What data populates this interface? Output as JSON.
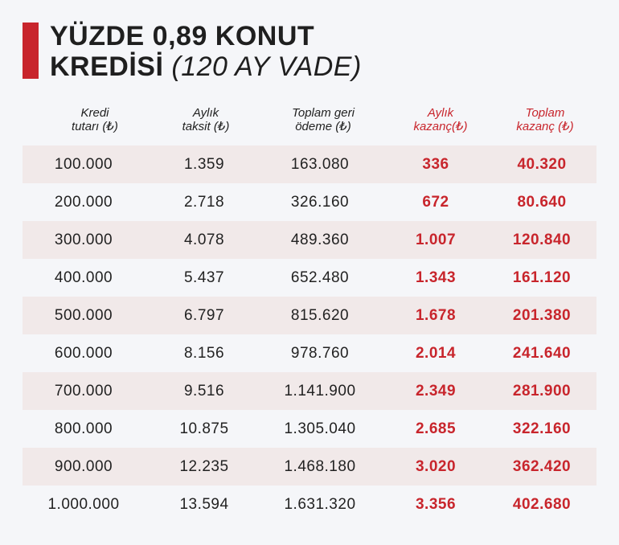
{
  "title": {
    "line1": "YÜZDE 0,89 KONUT",
    "line2_main": "KREDİSİ",
    "line2_sub": "(120 AY VADE)"
  },
  "colors": {
    "accent": "#c8252c",
    "row_shade": "#f1e9e9",
    "background": "#f5f6f9"
  },
  "table": {
    "headers": [
      {
        "line1": "Kredi",
        "line2": "tutarı (₺)"
      },
      {
        "line1": "Aylık",
        "line2": "taksit (₺)"
      },
      {
        "line1": "Toplam geri",
        "line2": "ödeme (₺)"
      },
      {
        "line1": "Aylık",
        "line2": "kazanç(₺)"
      },
      {
        "line1": "Toplam",
        "line2": "kazanç (₺)"
      }
    ],
    "rows": [
      [
        "100.000",
        "1.359",
        "163.080",
        "336",
        "40.320"
      ],
      [
        "200.000",
        "2.718",
        "326.160",
        "672",
        "80.640"
      ],
      [
        "300.000",
        "4.078",
        "489.360",
        "1.007",
        "120.840"
      ],
      [
        "400.000",
        "5.437",
        "652.480",
        "1.343",
        "161.120"
      ],
      [
        "500.000",
        "6.797",
        "815.620",
        "1.678",
        "201.380"
      ],
      [
        "600.000",
        "8.156",
        "978.760",
        "2.014",
        "241.640"
      ],
      [
        "700.000",
        "9.516",
        "1.141.900",
        "2.349",
        "281.900"
      ],
      [
        "800.000",
        "10.875",
        "1.305.040",
        "2.685",
        "322.160"
      ],
      [
        "900.000",
        "12.235",
        "1.468.180",
        "3.020",
        "362.420"
      ],
      [
        "1.000.000",
        "13.594",
        "1.631.320",
        "3.356",
        "402.680"
      ]
    ]
  }
}
